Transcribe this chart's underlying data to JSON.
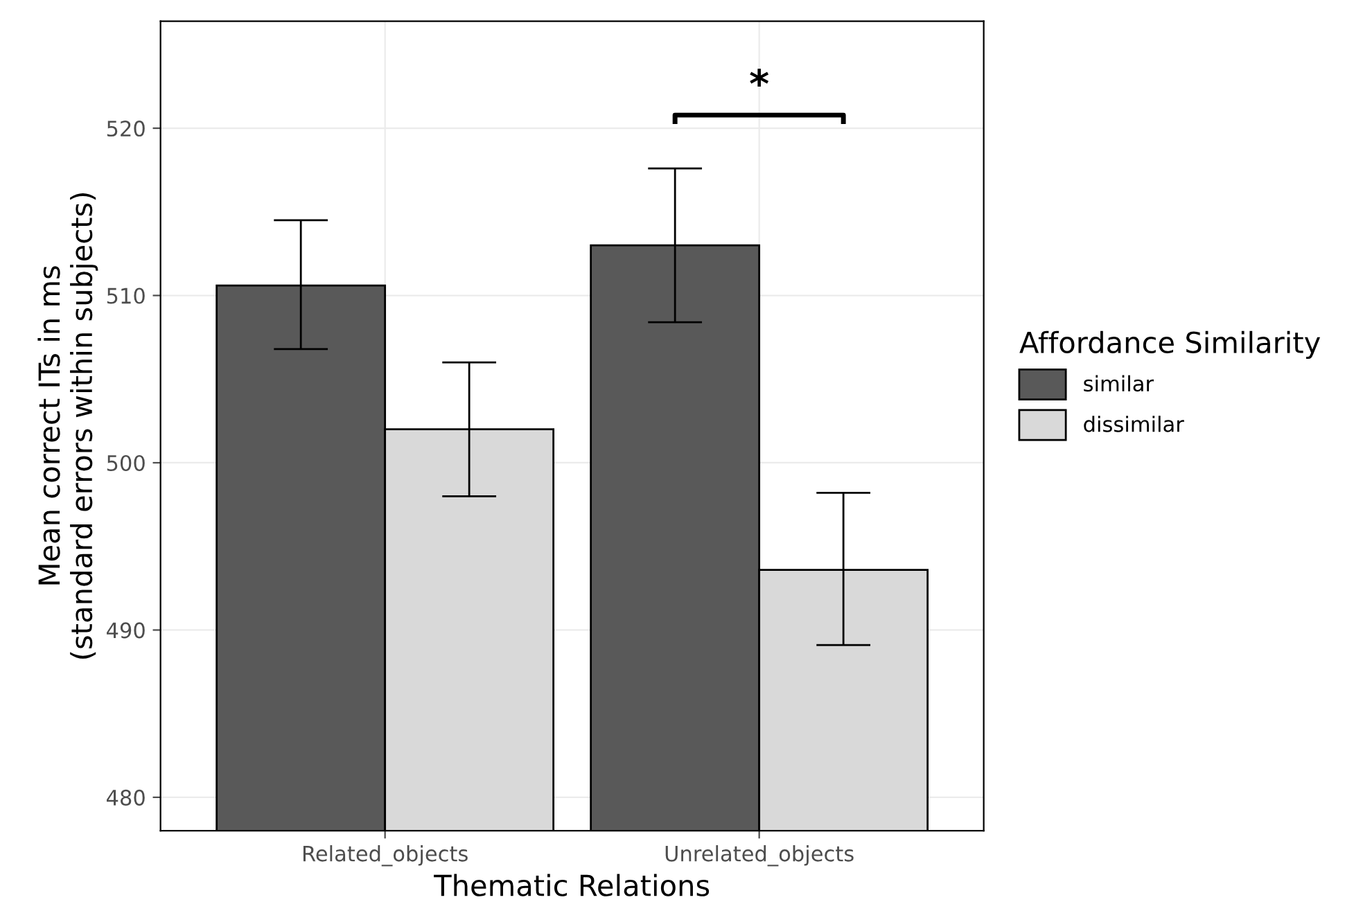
{
  "chart_data": {
    "type": "bar",
    "xlabel": "Thematic Relations",
    "ylabel": "Mean correct ITs in ms\n(standard errors within subjects)",
    "legend_title": "Affordance Similarity",
    "categories": [
      "Related_objects",
      "Unrelated_objects"
    ],
    "series": [
      {
        "name": "similar",
        "color": "#595959",
        "values": [
          510.6,
          513.0
        ],
        "errors": [
          [
            506.8,
            514.5
          ],
          [
            508.4,
            517.6
          ]
        ]
      },
      {
        "name": "dissimilar",
        "color": "#d9d9d9",
        "values": [
          502.0,
          493.6
        ],
        "errors": [
          [
            498.0,
            506.0
          ],
          [
            489.1,
            498.2
          ]
        ]
      }
    ],
    "ylim": [
      478,
      526.4
    ],
    "yticks": [
      480,
      490,
      500,
      510,
      520
    ],
    "grid": true,
    "legend": "right",
    "annotations": [
      "*"
    ]
  }
}
